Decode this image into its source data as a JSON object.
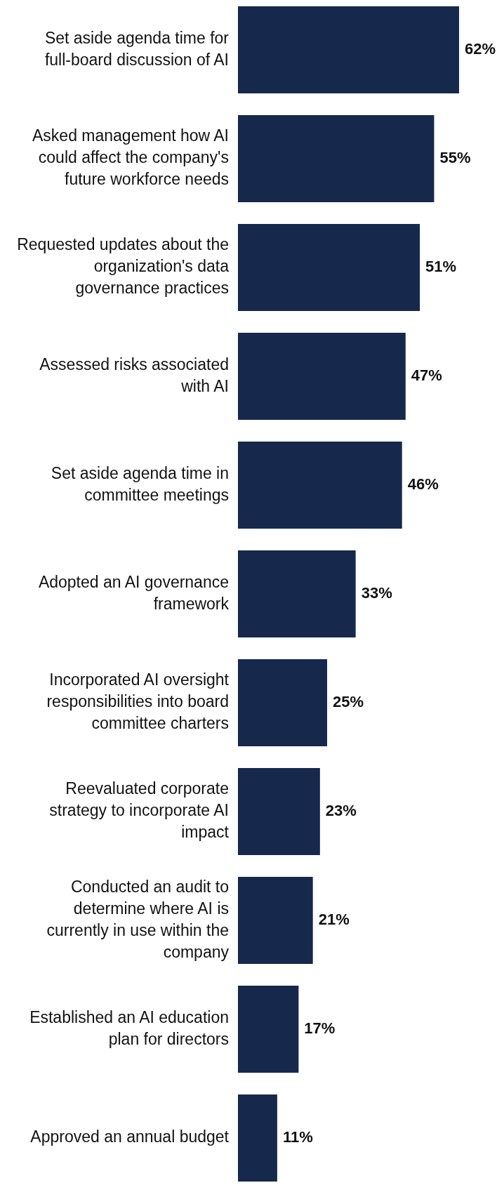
{
  "chart_data": {
    "type": "bar",
    "orientation": "horizontal",
    "categories": [
      "Set aside agenda time for full-board discussion of AI",
      "Asked management how AI could affect the company's future workforce needs",
      "Requested updates about the organization's data governance practices",
      "Assessed risks associated with AI",
      "Set aside agenda time in committee meetings",
      "Adopted an AI governance framework",
      "Incorporated AI oversight responsibilities into board committee charters",
      "Reevaluated corporate strategy to incorporate AI impact",
      "Conducted an audit to determine where AI is currently in use within the company",
      "Established an AI education plan for directors",
      "Approved an annual budget"
    ],
    "values": [
      62,
      55,
      51,
      47,
      46,
      33,
      25,
      23,
      21,
      17,
      11
    ],
    "value_labels": [
      "62%",
      "55%",
      "51%",
      "47%",
      "46%",
      "33%",
      "25%",
      "23%",
      "21%",
      "17%",
      "11%"
    ],
    "color": "#16284b"
  }
}
